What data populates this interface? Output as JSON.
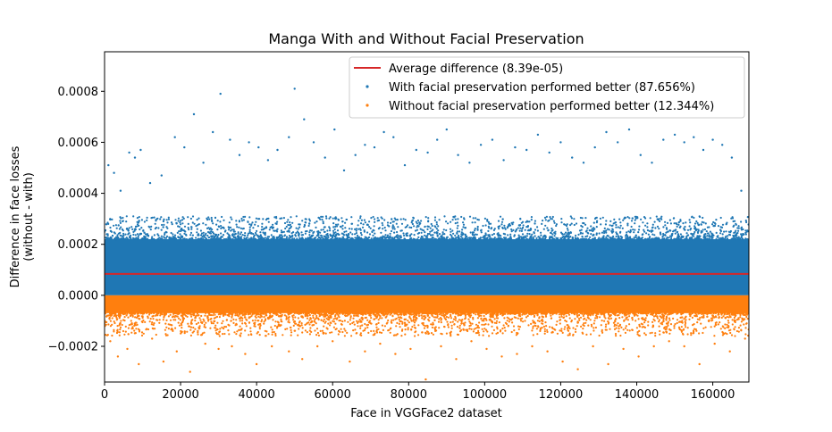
{
  "chart_data": {
    "type": "scatter",
    "title": "Manga With and Without Facial Preservation",
    "xlabel": "Face in VGGFace2 dataset",
    "ylabel_lines": [
      "Difference in face losses",
      "(without - with)"
    ],
    "xlim": [
      0,
      169500
    ],
    "ylim": [
      -0.00034,
      0.000955
    ],
    "x_ticks": [
      0,
      20000,
      40000,
      60000,
      80000,
      100000,
      120000,
      140000,
      160000
    ],
    "x_tick_labels": [
      "0",
      "20000",
      "40000",
      "60000",
      "80000",
      "100000",
      "120000",
      "140000",
      "160000"
    ],
    "y_ticks": [
      -0.0002,
      0,
      0.0002,
      0.0004,
      0.0006,
      0.0008
    ],
    "y_tick_labels": [
      "−0.0002",
      "0.0000",
      "0.0002",
      "0.0004",
      "0.0006",
      "0.0008"
    ],
    "grid": false,
    "legend_position": "top-right",
    "average_line": {
      "label": "Average difference (8.39e-05)",
      "value": 8.39e-05,
      "color": "#d62728"
    },
    "series": [
      {
        "label": "With facial preservation performed better (87.656%)",
        "color": "#1f77b4",
        "points": [
          [
            1000,
            0.00051
          ],
          [
            2500,
            0.00048
          ],
          [
            4200,
            0.00041
          ],
          [
            6500,
            0.00056
          ],
          [
            8000,
            0.00054
          ],
          [
            9500,
            0.00057
          ],
          [
            12000,
            0.00044
          ],
          [
            15000,
            0.00047
          ],
          [
            18500,
            0.00062
          ],
          [
            21000,
            0.00058
          ],
          [
            23500,
            0.00071
          ],
          [
            26000,
            0.00052
          ],
          [
            28500,
            0.00064
          ],
          [
            30500,
            0.00079
          ],
          [
            33000,
            0.00061
          ],
          [
            35500,
            0.00055
          ],
          [
            38000,
            0.0006
          ],
          [
            40500,
            0.00058
          ],
          [
            43000,
            0.00053
          ],
          [
            45500,
            0.00057
          ],
          [
            48500,
            0.00062
          ],
          [
            50000,
            0.00081
          ],
          [
            52500,
            0.00069
          ],
          [
            55000,
            0.0006
          ],
          [
            58000,
            0.00054
          ],
          [
            60500,
            0.00065
          ],
          [
            63000,
            0.00049
          ],
          [
            66000,
            0.00055
          ],
          [
            68500,
            0.00059
          ],
          [
            71000,
            0.00058
          ],
          [
            73500,
            0.00064
          ],
          [
            76000,
            0.00062
          ],
          [
            79000,
            0.00051
          ],
          [
            82000,
            0.00057
          ],
          [
            85000,
            0.00056
          ],
          [
            87500,
            0.00061
          ],
          [
            90000,
            0.00065
          ],
          [
            93000,
            0.00055
          ],
          [
            96000,
            0.00052
          ],
          [
            99000,
            0.00059
          ],
          [
            102000,
            0.00061
          ],
          [
            105000,
            0.00053
          ],
          [
            108000,
            0.00058
          ],
          [
            111000,
            0.00057
          ],
          [
            114000,
            0.00063
          ],
          [
            117000,
            0.00056
          ],
          [
            120000,
            0.0006
          ],
          [
            123000,
            0.00054
          ],
          [
            126000,
            0.00052
          ],
          [
            129000,
            0.00058
          ],
          [
            132000,
            0.00064
          ],
          [
            135000,
            0.0006
          ],
          [
            138000,
            0.00065
          ],
          [
            141000,
            0.00055
          ],
          [
            144000,
            0.00052
          ],
          [
            147000,
            0.00061
          ],
          [
            150000,
            0.00063
          ],
          [
            152500,
            0.0006
          ],
          [
            155000,
            0.00062
          ],
          [
            157500,
            0.00057
          ],
          [
            160000,
            0.00061
          ],
          [
            162500,
            0.00059
          ],
          [
            165000,
            0.00054
          ],
          [
            167500,
            0.00041
          ]
        ]
      },
      {
        "label": "Without facial preservation performed better (12.344%)",
        "color": "#ff7f0e",
        "points": [
          [
            1500,
            -0.00018
          ],
          [
            3500,
            -0.00024
          ],
          [
            6000,
            -0.00021
          ],
          [
            9000,
            -0.00027
          ],
          [
            12500,
            -0.00017
          ],
          [
            15500,
            -0.00026
          ],
          [
            19000,
            -0.00022
          ],
          [
            22500,
            -0.0003
          ],
          [
            26500,
            -0.00019
          ],
          [
            30000,
            -0.00021
          ],
          [
            33500,
            -0.0002
          ],
          [
            37000,
            -0.00023
          ],
          [
            40000,
            -0.00027
          ],
          [
            44000,
            -0.0002
          ],
          [
            48500,
            -0.00022
          ],
          [
            52000,
            -0.00025
          ],
          [
            56000,
            -0.0002
          ],
          [
            60000,
            -0.00018
          ],
          [
            64500,
            -0.00026
          ],
          [
            68500,
            -0.00022
          ],
          [
            72500,
            -0.00019
          ],
          [
            76500,
            -0.00023
          ],
          [
            80500,
            -0.00021
          ],
          [
            84500,
            -0.00033
          ],
          [
            88500,
            -0.0002
          ],
          [
            92500,
            -0.00025
          ],
          [
            96500,
            -0.00018
          ],
          [
            100500,
            -0.00021
          ],
          [
            104500,
            -0.00024
          ],
          [
            108500,
            -0.00023
          ],
          [
            112500,
            -0.0002
          ],
          [
            116500,
            -0.00022
          ],
          [
            120500,
            -0.00026
          ],
          [
            124500,
            -0.00029
          ],
          [
            128500,
            -0.0002
          ],
          [
            132500,
            -0.00027
          ],
          [
            136500,
            -0.00021
          ],
          [
            140500,
            -0.00024
          ],
          [
            144500,
            -0.0002
          ],
          [
            148500,
            -0.00018
          ],
          [
            152500,
            -0.0002
          ],
          [
            156500,
            -0.00027
          ],
          [
            160500,
            -0.00019
          ],
          [
            164500,
            -0.00022
          ],
          [
            168500,
            -0.00017
          ]
        ]
      }
    ],
    "dense_bands": [
      {
        "series_index": 0,
        "range": [
          0,
          0.00031
        ],
        "solid_range": [
          0,
          0.00022
        ],
        "color": "#1f77b4"
      },
      {
        "series_index": 1,
        "range": [
          -0.00016,
          0
        ],
        "solid_range": [
          -7e-05,
          0
        ],
        "color": "#ff7f0e"
      }
    ]
  }
}
